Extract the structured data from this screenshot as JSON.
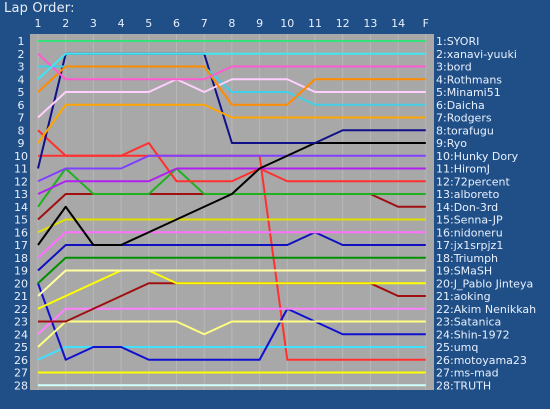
{
  "title": "Lap Order:",
  "chart_data": {
    "type": "line",
    "title": "Lap Order:",
    "xlabel": "",
    "ylabel": "",
    "x_ticks": [
      "1",
      "2",
      "3",
      "4",
      "5",
      "6",
      "7",
      "8",
      "9",
      "10",
      "11",
      "12",
      "13",
      "14",
      "F"
    ],
    "y_ticks": [
      1,
      2,
      3,
      4,
      5,
      6,
      7,
      8,
      9,
      10,
      11,
      12,
      13,
      14,
      15,
      16,
      17,
      18,
      19,
      20,
      21,
      22,
      23,
      24,
      25,
      26,
      27,
      28
    ],
    "ylim": [
      1,
      28
    ],
    "y_reversed": true,
    "grid": true,
    "legend": "right",
    "colors": {
      "background": "#1f4f86",
      "plot_area": "#a8a8a8",
      "text": "#e8f0ff"
    },
    "series": [
      {
        "name": "1:SYORI",
        "color": "#33e37a",
        "positions": [
          1,
          1,
          1,
          1,
          1,
          1,
          1,
          1,
          1,
          1,
          1,
          1,
          1,
          1,
          1
        ]
      },
      {
        "name": "2:xanavi-yuuki",
        "color": "#40e6f0",
        "positions": [
          4,
          2,
          2,
          2,
          2,
          2,
          2,
          2,
          2,
          2,
          2,
          2,
          2,
          2,
          2
        ]
      },
      {
        "name": "3:bord",
        "color": "#ff5ad2",
        "positions": [
          2,
          4,
          4,
          4,
          4,
          4,
          4,
          3,
          3,
          3,
          3,
          3,
          3,
          3,
          3
        ]
      },
      {
        "name": "4:Rothmans",
        "color": "#ff8c00",
        "positions": [
          5,
          3,
          3,
          3,
          3,
          3,
          3,
          6,
          6,
          6,
          4,
          4,
          4,
          4,
          4
        ]
      },
      {
        "name": "5:Minami51",
        "color": "#ffd0ff",
        "positions": [
          7,
          5,
          5,
          5,
          5,
          4,
          5,
          4,
          4,
          4,
          5,
          5,
          5,
          5,
          5
        ]
      },
      {
        "name": "6:Daicha",
        "color": "#40d0e8",
        "positions": [
          3,
          3,
          3,
          3,
          3,
          3,
          3,
          5,
          5,
          5,
          6,
          6,
          6,
          6,
          6
        ]
      },
      {
        "name": "7:Rodgers",
        "color": "#ffa500",
        "positions": [
          9,
          6,
          6,
          6,
          6,
          6,
          6,
          7,
          7,
          7,
          7,
          7,
          7,
          7,
          7
        ]
      },
      {
        "name": "8:torafugu",
        "color": "#10108a",
        "positions": [
          11,
          2,
          2,
          2,
          2,
          2,
          2,
          9,
          9,
          9,
          9,
          8,
          8,
          8,
          8
        ]
      },
      {
        "name": "9:Ryo",
        "color": "#000000",
        "positions": [
          17,
          14,
          17,
          17,
          16,
          15,
          14,
          13,
          11,
          10,
          9,
          9,
          9,
          9,
          9
        ]
      },
      {
        "name": "10:Hunky Dory",
        "color": "#8040ff",
        "positions": [
          12,
          11,
          11,
          11,
          10,
          10,
          10,
          10,
          10,
          10,
          10,
          10,
          10,
          10,
          10
        ]
      },
      {
        "name": "11:HiromJ",
        "color": "#b020f0",
        "positions": [
          13,
          12,
          12,
          12,
          12,
          11,
          11,
          11,
          11,
          11,
          11,
          11,
          11,
          11,
          11
        ]
      },
      {
        "name": "12:72percent",
        "color": "#ff3030",
        "positions": [
          10,
          10,
          10,
          10,
          9,
          12,
          12,
          12,
          11,
          12,
          12,
          12,
          12,
          12,
          12
        ]
      },
      {
        "name": "13:alboreto",
        "color": "#20b020",
        "positions": [
          14,
          11,
          13,
          13,
          13,
          11,
          13,
          13,
          13,
          13,
          13,
          13,
          13,
          13,
          13
        ]
      },
      {
        "name": "14:Don-3rd",
        "color": "#a01010",
        "positions": [
          15,
          13,
          13,
          13,
          13,
          13,
          13,
          13,
          13,
          13,
          13,
          13,
          13,
          14,
          14
        ]
      },
      {
        "name": "15:Senna-JP",
        "color": "#e0e000",
        "positions": [
          16,
          15,
          15,
          15,
          15,
          15,
          15,
          15,
          15,
          15,
          15,
          15,
          15,
          15,
          15
        ]
      },
      {
        "name": "16:nidoneru",
        "color": "#ff70ff",
        "positions": [
          18,
          16,
          16,
          16,
          16,
          16,
          16,
          16,
          16,
          16,
          16,
          16,
          16,
          16,
          16
        ]
      },
      {
        "name": "17:jx1srpjz1",
        "color": "#1010c0",
        "positions": [
          19,
          17,
          17,
          17,
          17,
          17,
          17,
          17,
          17,
          17,
          16,
          17,
          17,
          17,
          17
        ]
      },
      {
        "name": "18:Triumph",
        "color": "#009000",
        "positions": [
          20,
          18,
          18,
          18,
          18,
          18,
          18,
          18,
          18,
          18,
          18,
          18,
          18,
          18,
          18
        ]
      },
      {
        "name": "19:SMaSH",
        "color": "#ffffa0",
        "positions": [
          21,
          19,
          19,
          19,
          19,
          19,
          19,
          19,
          19,
          19,
          19,
          19,
          19,
          19,
          19
        ]
      },
      {
        "name": "20:J_Pablo Jinteya",
        "color": "#ffff00",
        "positions": [
          22,
          21,
          20,
          19,
          19,
          20,
          20,
          20,
          20,
          20,
          20,
          20,
          20,
          20,
          20
        ]
      },
      {
        "name": "21:aoking",
        "color": "#a01010",
        "positions": [
          23,
          23,
          22,
          21,
          20,
          20,
          20,
          20,
          20,
          20,
          20,
          20,
          20,
          21,
          21
        ]
      },
      {
        "name": "22:Akim Nenikkah",
        "color": "#ff80ff",
        "positions": [
          24,
          22,
          22,
          22,
          22,
          22,
          22,
          22,
          22,
          22,
          22,
          22,
          22,
          22,
          22
        ]
      },
      {
        "name": "23:Satanica",
        "color": "#ffff80",
        "positions": [
          25,
          23,
          23,
          23,
          23,
          23,
          24,
          23,
          23,
          23,
          23,
          23,
          23,
          23,
          23
        ]
      },
      {
        "name": "24:Shin-1972",
        "color": "#1010d0",
        "positions": [
          20,
          26,
          25,
          25,
          26,
          26,
          26,
          26,
          26,
          22,
          23,
          24,
          24,
          24,
          24
        ]
      },
      {
        "name": "25:umq",
        "color": "#40e0ff",
        "positions": [
          26,
          25,
          25,
          25,
          25,
          25,
          25,
          25,
          25,
          25,
          25,
          25,
          25,
          25,
          25
        ]
      },
      {
        "name": "26:motoyama23",
        "color": "#ff3030",
        "positions": [
          8,
          10,
          10,
          10,
          10,
          10,
          10,
          10,
          10,
          26,
          26,
          26,
          26,
          26,
          26
        ]
      },
      {
        "name": "27:ms-mad",
        "color": "#ffff00",
        "positions": [
          27,
          27,
          27,
          27,
          27,
          27,
          27,
          27,
          27,
          27,
          27,
          27,
          27,
          27,
          27
        ]
      },
      {
        "name": "28:TRUTH",
        "color": "#d0ffff",
        "positions": [
          28,
          28,
          28,
          28,
          28,
          28,
          28,
          28,
          28,
          28,
          28,
          28,
          28,
          28,
          28
        ]
      }
    ]
  }
}
